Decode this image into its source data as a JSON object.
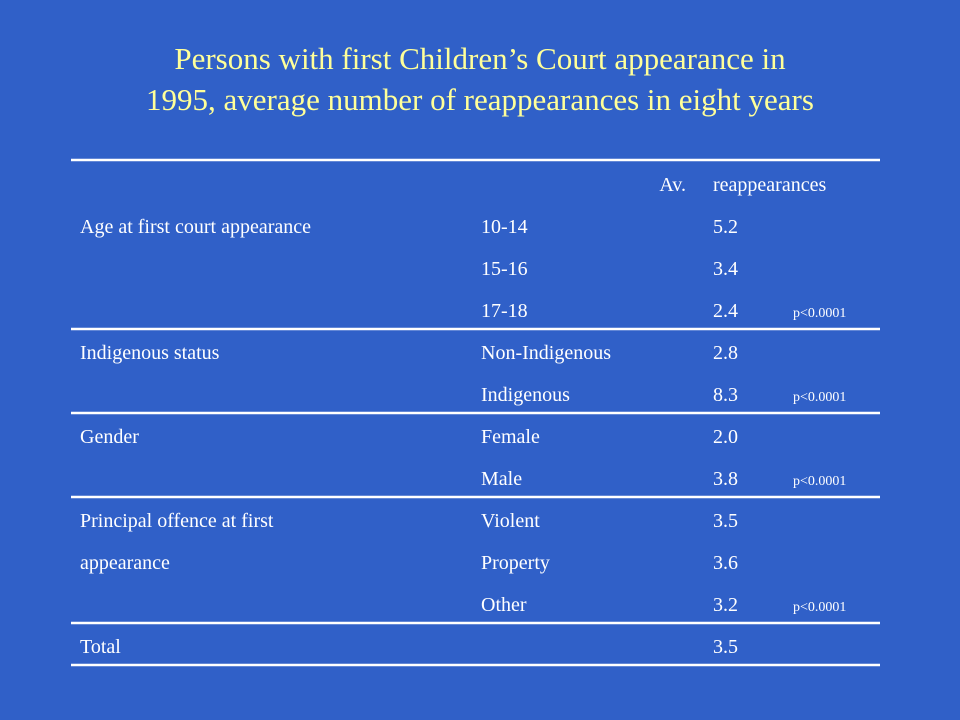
{
  "title_lines": [
    "Persons with first Children’s Court appearance in",
    "1995, average number of reappearances in eight years"
  ],
  "chart_data": {
    "type": "table",
    "header": {
      "col_value_left": "Av.",
      "col_value_right": "reappearances"
    },
    "groups": [
      {
        "label_lines": [
          "Age at first court appearance"
        ],
        "rows": [
          {
            "category": "10-14",
            "value": "5.2",
            "p": ""
          },
          {
            "category": "15-16",
            "value": "3.4",
            "p": ""
          },
          {
            "category": "17-18",
            "value": "2.4",
            "p": "p<0.0001"
          }
        ]
      },
      {
        "label_lines": [
          "Indigenous status"
        ],
        "rows": [
          {
            "category": "Non-Indigenous",
            "value": "2.8",
            "p": ""
          },
          {
            "category": "Indigenous",
            "value": "8.3",
            "p": "p<0.0001"
          }
        ]
      },
      {
        "label_lines": [
          "Gender"
        ],
        "rows": [
          {
            "category": "Female",
            "value": "2.0",
            "p": ""
          },
          {
            "category": "Male",
            "value": "3.8",
            "p": "p<0.0001"
          }
        ]
      },
      {
        "label_lines": [
          "Principal offence at first",
          "appearance"
        ],
        "rows": [
          {
            "category": "Violent",
            "value": "3.5",
            "p": ""
          },
          {
            "category": "Property",
            "value": "3.6",
            "p": ""
          },
          {
            "category": "Other",
            "value": "3.2",
            "p": "p<0.0001"
          }
        ]
      },
      {
        "label_lines": [
          "Total"
        ],
        "rows": [
          {
            "category": "",
            "value": "3.5",
            "p": ""
          }
        ]
      }
    ]
  }
}
